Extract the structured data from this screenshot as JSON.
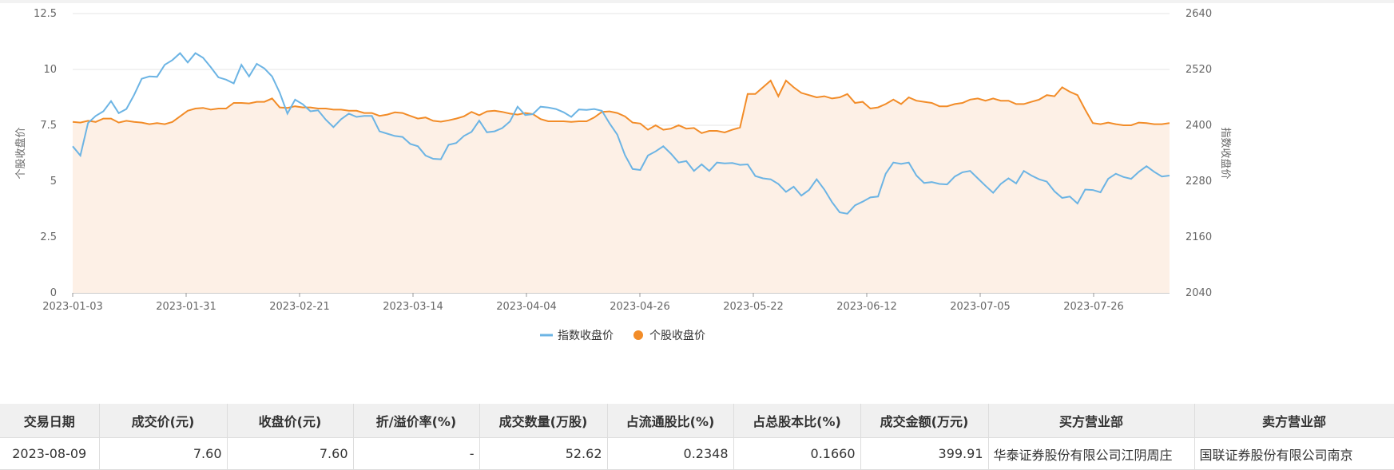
{
  "chart_data": {
    "type": "line",
    "x_labels": [
      "2023-01-03",
      "2023-01-31",
      "2023-02-21",
      "2023-03-14",
      "2023-04-04",
      "2023-04-26",
      "2023-05-22",
      "2023-06-12",
      "2023-07-05",
      "2023-07-26"
    ],
    "ylabel_left": "个股收盘价",
    "ylabel_right": "指数收盘价",
    "y_left_ticks": [
      "0",
      "2.5",
      "5",
      "7.5",
      "10",
      "12.5"
    ],
    "y_right_ticks": [
      "2040",
      "2160",
      "2280",
      "2400",
      "2520",
      "2640"
    ],
    "ylim_left": [
      0,
      12.5
    ],
    "ylim_right": [
      2040,
      2640
    ],
    "n_points": 144,
    "grid": true,
    "legend_position": "bottom-center",
    "series": [
      {
        "name": "指数收盘价",
        "axis": "right",
        "color": "#6cb4e4",
        "values": [
          2355,
          2335,
          2405,
          2420,
          2430,
          2452,
          2426,
          2435,
          2465,
          2500,
          2505,
          2504,
          2530,
          2540,
          2555,
          2535,
          2555,
          2545,
          2525,
          2503,
          2498,
          2490,
          2530,
          2505,
          2532,
          2522,
          2505,
          2470,
          2425,
          2455,
          2445,
          2430,
          2432,
          2412,
          2396,
          2413,
          2425,
          2418,
          2420,
          2420,
          2387,
          2382,
          2377,
          2375,
          2360,
          2355,
          2335,
          2328,
          2327,
          2358,
          2362,
          2377,
          2386,
          2410,
          2385,
          2387,
          2394,
          2408,
          2440,
          2422,
          2424,
          2440,
          2438,
          2435,
          2428,
          2418,
          2434,
          2433,
          2435,
          2431,
          2404,
          2380,
          2336,
          2306,
          2304,
          2335,
          2344,
          2355,
          2339,
          2320,
          2323,
          2302,
          2316,
          2302,
          2320,
          2318,
          2319,
          2315,
          2316,
          2291,
          2286,
          2284,
          2274,
          2257,
          2268,
          2249,
          2261,
          2284,
          2262,
          2235,
          2213,
          2210,
          2228,
          2236,
          2245,
          2247,
          2296,
          2320,
          2317,
          2320,
          2292,
          2276,
          2278,
          2274,
          2273,
          2290,
          2299,
          2302,
          2286,
          2270,
          2255,
          2274,
          2286,
          2275,
          2302,
          2292,
          2284,
          2279,
          2258,
          2244,
          2247,
          2232,
          2262,
          2261,
          2256,
          2285,
          2296,
          2289,
          2285,
          2300,
          2312,
          2300,
          2290,
          2292
        ]
      },
      {
        "name": "个股收盘价",
        "axis": "left",
        "color": "#f28c28",
        "fill": "#fdf0e6",
        "values": [
          7.65,
          7.62,
          7.7,
          7.65,
          7.8,
          7.8,
          7.62,
          7.7,
          7.65,
          7.62,
          7.55,
          7.6,
          7.55,
          7.65,
          7.9,
          8.15,
          8.25,
          8.28,
          8.2,
          8.25,
          8.25,
          8.5,
          8.5,
          8.48,
          8.55,
          8.55,
          8.7,
          8.3,
          8.28,
          8.35,
          8.3,
          8.3,
          8.25,
          8.25,
          8.2,
          8.2,
          8.15,
          8.15,
          8.05,
          8.05,
          7.92,
          7.98,
          8.08,
          8.05,
          7.92,
          7.8,
          7.85,
          7.7,
          7.66,
          7.72,
          7.8,
          7.9,
          8.1,
          7.95,
          8.12,
          8.15,
          8.1,
          8.02,
          7.98,
          8.05,
          8.0,
          7.78,
          7.68,
          7.68,
          7.68,
          7.65,
          7.68,
          7.68,
          7.85,
          8.1,
          8.12,
          8.05,
          7.9,
          7.62,
          7.58,
          7.3,
          7.5,
          7.3,
          7.35,
          7.5,
          7.35,
          7.38,
          7.15,
          7.25,
          7.25,
          7.18,
          7.3,
          7.4,
          8.9,
          8.9,
          9.2,
          9.5,
          8.8,
          9.5,
          9.2,
          8.95,
          8.85,
          8.75,
          8.8,
          8.7,
          8.75,
          8.9,
          8.5,
          8.55,
          8.25,
          8.3,
          8.45,
          8.65,
          8.45,
          8.75,
          8.6,
          8.55,
          8.5,
          8.35,
          8.35,
          8.45,
          8.5,
          8.65,
          8.7,
          8.6,
          8.7,
          8.6,
          8.6,
          8.45,
          8.45,
          8.55,
          8.65,
          8.85,
          8.8,
          9.2,
          9.0,
          8.85,
          8.2,
          7.6,
          7.55,
          7.62,
          7.55,
          7.5,
          7.5,
          7.62,
          7.6,
          7.55,
          7.55,
          7.6
        ]
      }
    ]
  },
  "table": {
    "headers": [
      "交易日期",
      "成交价(元)",
      "收盘价(元)",
      "折/溢价率(%)",
      "成交数量(万股)",
      "占流通股比(%)",
      "占总股本比(%)",
      "成交金额(万元)",
      "买方营业部",
      "卖方营业部"
    ],
    "rows": [
      [
        "2023-08-09",
        "7.60",
        "7.60",
        "-",
        "52.62",
        "0.2348",
        "0.1660",
        "399.91",
        "华泰证券股份有限公司江阴周庄",
        "国联证券股份有限公司南京"
      ]
    ]
  }
}
